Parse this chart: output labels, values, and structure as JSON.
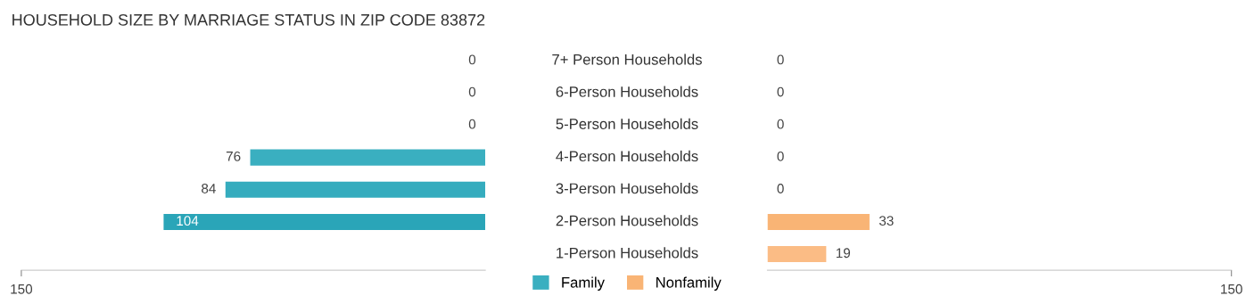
{
  "chart_data": [
    {
      "type": "bar",
      "orientation": "horizontal",
      "title": "HOUSEHOLD SIZE BY MARRIAGE STATUS IN ZIP CODE 83872",
      "categories": [
        "7+ Person Households",
        "6-Person Households",
        "5-Person Households",
        "4-Person Households",
        "3-Person Households",
        "2-Person Households",
        "1-Person Households"
      ],
      "series": [
        {
          "name": "Family",
          "color": "#3aafc0",
          "values": [
            0,
            0,
            0,
            76,
            84,
            104,
            null
          ],
          "colors": [
            "#7ecad5",
            "#7ecad5",
            "#7ecad5",
            "#3aafc0",
            "#35acbe",
            "#2aa5b8",
            "#2aa5b8"
          ]
        }
      ],
      "xlim": [
        150,
        0
      ],
      "xticks": [
        150
      ],
      "data_labels": true,
      "legend": "bottom",
      "grid": false
    },
    {
      "type": "bar",
      "orientation": "horizontal",
      "categories": [
        null,
        null,
        null,
        null,
        null,
        null,
        null
      ],
      "series": [
        {
          "name": "Nonfamily",
          "color": "#f9b475",
          "values": [
            0,
            0,
            0,
            0,
            0,
            33,
            19
          ],
          "colors": [
            "#fcc9a3",
            "#fcc9a3",
            "#fcc9a3",
            "#fcc9a3",
            "#fcc9a3",
            "#f9b475",
            "#fbbc85"
          ]
        }
      ],
      "xlim": [
        0,
        150
      ],
      "xticks": [
        150
      ],
      "data_labels": true,
      "legend": "bottom",
      "grid": false
    }
  ]
}
